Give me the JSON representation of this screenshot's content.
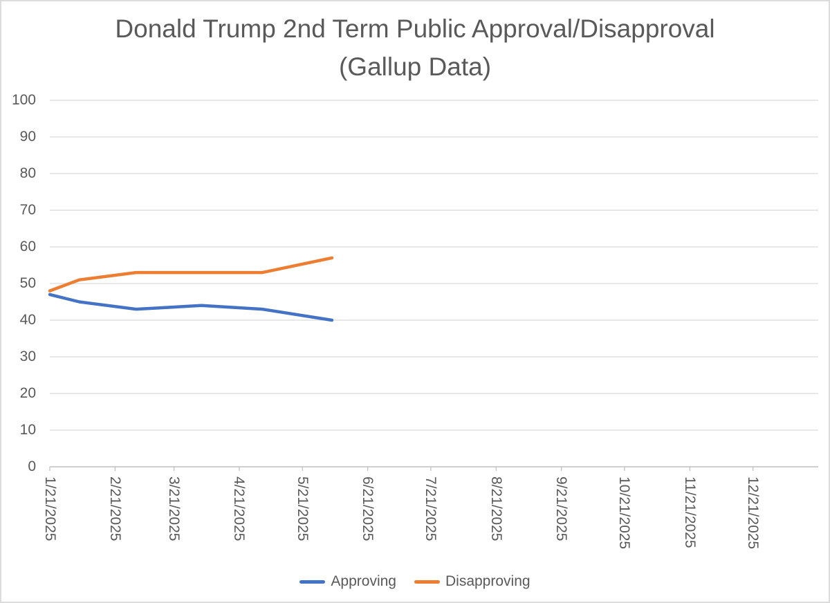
{
  "chart_data": {
    "type": "line",
    "title": "Donald Trump 2nd Term Public Approval/Disapproval",
    "subtitle": "(Gallup Data)",
    "grid": "horizontal",
    "legend_position": "bottom-center",
    "x_axis": {
      "type": "date",
      "tick_labels": [
        "1/21/2025",
        "2/21/2025",
        "3/21/2025",
        "4/21/2025",
        "5/21/2025",
        "6/21/2025",
        "7/21/2025",
        "8/21/2025",
        "9/21/2025",
        "10/21/2025",
        "11/21/2025",
        "12/21/2025"
      ],
      "tick_day_offsets": [
        0,
        31,
        59,
        90,
        120,
        151,
        181,
        212,
        243,
        273,
        304,
        334
      ],
      "range_days": [
        0,
        365
      ],
      "label_rotation_deg": 90
    },
    "y_axis": {
      "tick_labels": [
        "0",
        "10",
        "20",
        "30",
        "40",
        "50",
        "60",
        "70",
        "80",
        "90",
        "100"
      ],
      "min": 0,
      "max": 100,
      "step": 10
    },
    "series": [
      {
        "name": "Approving",
        "color": "#4472C4",
        "points": [
          {
            "date": "1/21/2025",
            "day": 0,
            "value": 47
          },
          {
            "date": "2/4/2025",
            "day": 14,
            "value": 45
          },
          {
            "date": "3/3/2025",
            "day": 41,
            "value": 43
          },
          {
            "date": "4/3/2025",
            "day": 72,
            "value": 44
          },
          {
            "date": "5/2/2025",
            "day": 101,
            "value": 43
          },
          {
            "date": "6/4/2025",
            "day": 134,
            "value": 40
          }
        ]
      },
      {
        "name": "Disapproving",
        "color": "#ED7D31",
        "points": [
          {
            "date": "1/21/2025",
            "day": 0,
            "value": 48
          },
          {
            "date": "2/4/2025",
            "day": 14,
            "value": 51
          },
          {
            "date": "3/3/2025",
            "day": 41,
            "value": 53
          },
          {
            "date": "4/3/2025",
            "day": 72,
            "value": 53
          },
          {
            "date": "5/2/2025",
            "day": 101,
            "value": 53
          },
          {
            "date": "6/4/2025",
            "day": 134,
            "value": 57
          }
        ]
      }
    ],
    "colors": {
      "title_text": "#595959",
      "axis_label_text": "#595959",
      "gridline": "#D9D9D9",
      "axis_line": "#BFBFBF",
      "approving_line": "#4472C4",
      "disapproving_line": "#ED7D31"
    }
  }
}
